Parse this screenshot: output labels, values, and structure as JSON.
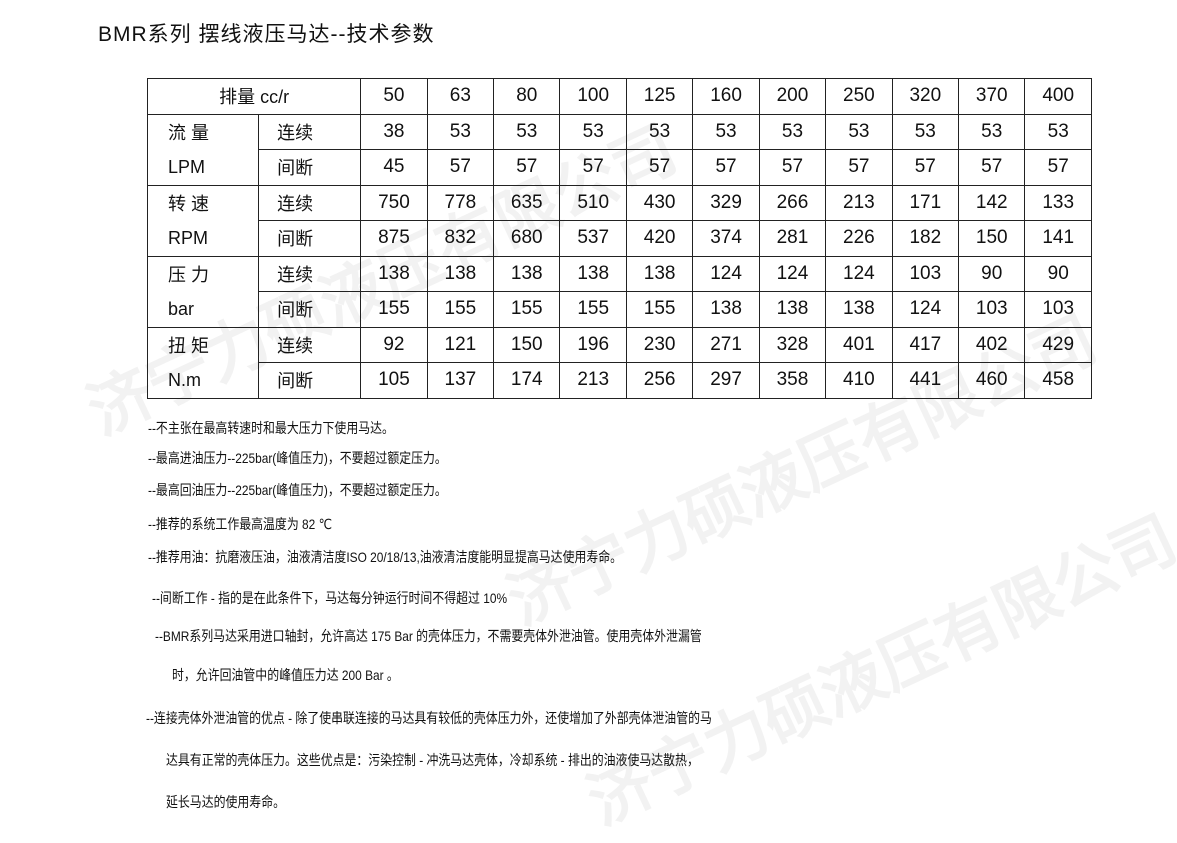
{
  "title": "BMR系列 摆线液压马达--技术参数",
  "watermark": "济宁力硕液压有限公司",
  "table": {
    "header_label": "排量 cc/r",
    "displacements": [
      "50",
      "63",
      "80",
      "100",
      "125",
      "160",
      "200",
      "250",
      "320",
      "370",
      "400"
    ],
    "groups": [
      {
        "name": "流 量",
        "unit": "LPM",
        "rows": [
          {
            "mode": "连续",
            "values": [
              "38",
              "53",
              "53",
              "53",
              "53",
              "53",
              "53",
              "53",
              "53",
              "53",
              "53"
            ]
          },
          {
            "mode": "间断",
            "values": [
              "45",
              "57",
              "57",
              "57",
              "57",
              "57",
              "57",
              "57",
              "57",
              "57",
              "57"
            ]
          }
        ]
      },
      {
        "name": "转 速",
        "unit": "RPM",
        "rows": [
          {
            "mode": "连续",
            "values": [
              "750",
              "778",
              "635",
              "510",
              "430",
              "329",
              "266",
              "213",
              "171",
              "142",
              "133"
            ]
          },
          {
            "mode": "间断",
            "values": [
              "875",
              "832",
              "680",
              "537",
              "420",
              "374",
              "281",
              "226",
              "182",
              "150",
              "141"
            ]
          }
        ]
      },
      {
        "name": "压 力",
        "unit": "bar",
        "rows": [
          {
            "mode": "连续",
            "values": [
              "138",
              "138",
              "138",
              "138",
              "138",
              "124",
              "124",
              "124",
              "103",
              "90",
              "90"
            ]
          },
          {
            "mode": "间断",
            "values": [
              "155",
              "155",
              "155",
              "155",
              "155",
              "138",
              "138",
              "138",
              "124",
              "103",
              "103"
            ]
          }
        ]
      },
      {
        "name": "扭 矩",
        "unit": "N.m",
        "rows": [
          {
            "mode": "连续",
            "values": [
              "92",
              "121",
              "150",
              "196",
              "230",
              "271",
              "328",
              "401",
              "417",
              "402",
              "429"
            ]
          },
          {
            "mode": "间断",
            "values": [
              "105",
              "137",
              "174",
              "213",
              "256",
              "297",
              "358",
              "410",
              "441",
              "460",
              "458"
            ]
          }
        ]
      }
    ]
  },
  "notes": [
    "--不主张在最高转速时和最大压力下使用马达。",
    "--最高进油压力--225bar(峰值压力)，不要超过额定压力。",
    "--最高回油压力--225bar(峰值压力)，不要超过额定压力。",
    "--推荐的系统工作最高温度为 82 ℃",
    "--推荐用油：抗磨液压油，油液清洁度ISO 20/18/13,油液清洁度能明显提高马达使用寿命。",
    "--间断工作 - 指的是在此条件下，马达每分钟运行时间不得超过 10%",
    "--BMR系列马达采用进口轴封，允许高达 175 Bar 的壳体压力，不需要壳体外泄油管。使用壳体外泄漏管",
    "时，允许回油管中的峰值压力达 200 Bar 。",
    "--连接壳体外泄油管的优点 - 除了使串联连接的马达具有较低的壳体压力外，还使增加了外部壳体泄油管的马",
    "达具有正常的壳体压力。这些优点是：污染控制 - 冲洗马达壳体，冷却系统 - 排出的油液使马达散热，",
    "延长马达的使用寿命。"
  ]
}
